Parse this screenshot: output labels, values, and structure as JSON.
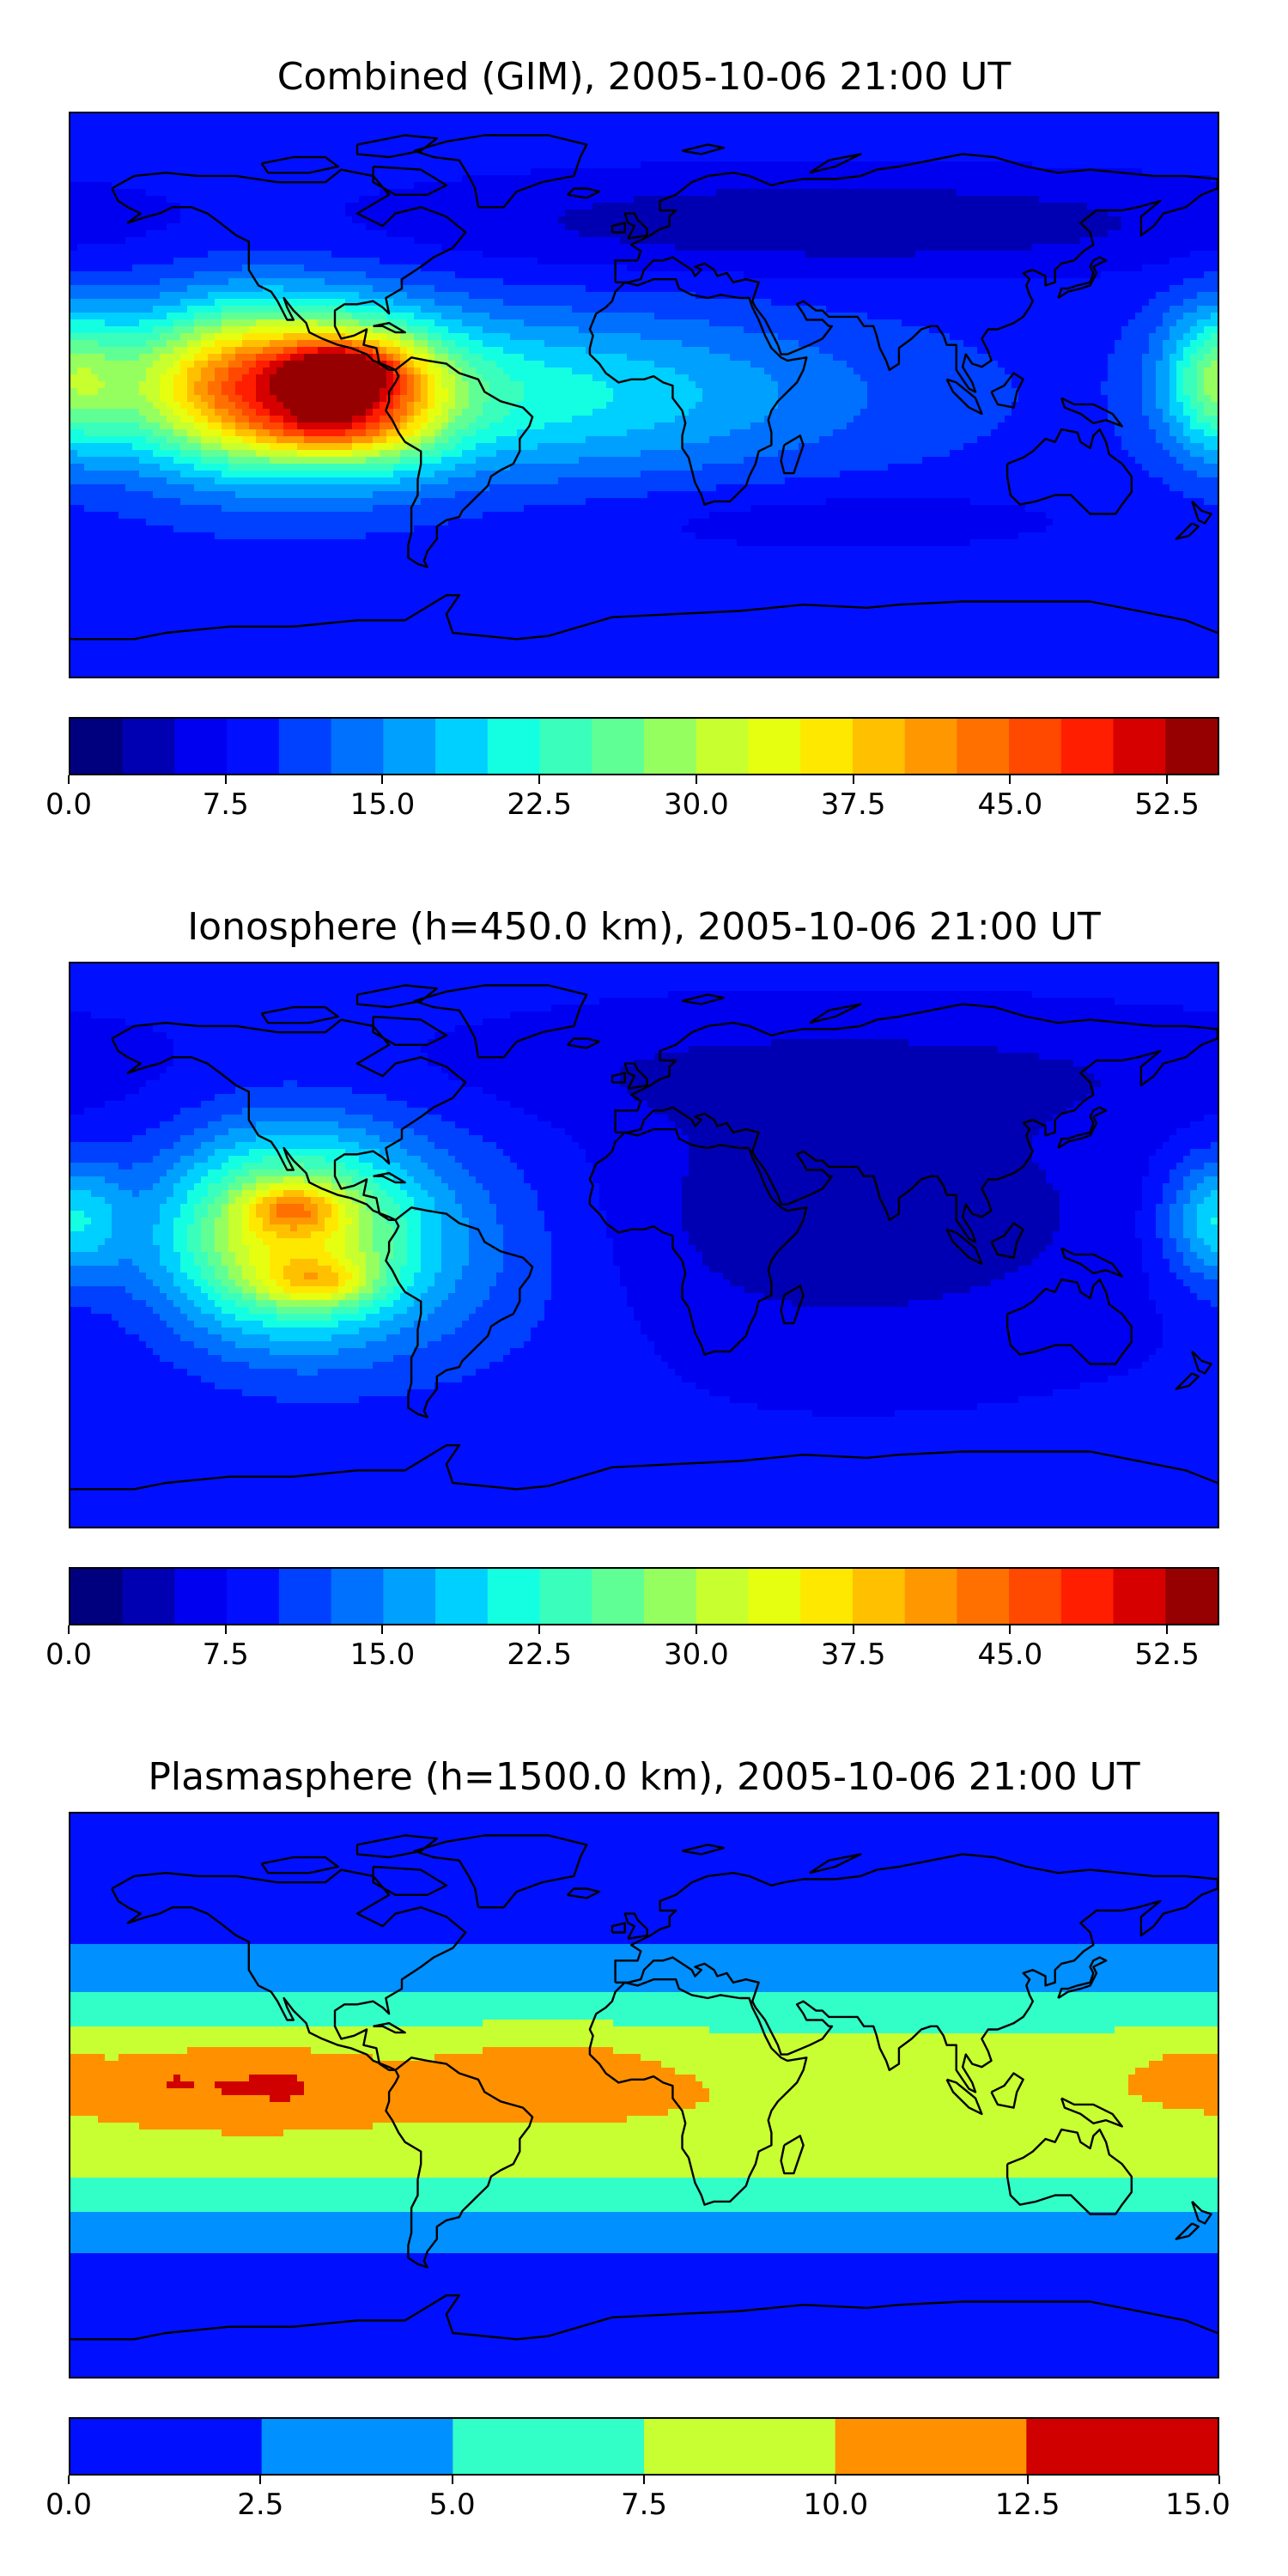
{
  "chart_data": [
    {
      "type": "heatmap",
      "title": "Combined (GIM), 2005-10-06 21:00 UT",
      "xlabel": "",
      "ylabel": "",
      "colorbar": {
        "min": 0.0,
        "max": 55.0,
        "step": 2.5,
        "ticks": [
          "0.0",
          "7.5",
          "15.0",
          "22.5",
          "30.0",
          "37.5",
          "45.0",
          "52.5"
        ],
        "tick_values": [
          0.0,
          7.5,
          15.0,
          22.5,
          30.0,
          37.5,
          45.0,
          52.5
        ],
        "colors": [
          "#00007f",
          "#0000b2",
          "#0000f1",
          "#0010ff",
          "#0040ff",
          "#0070ff",
          "#00a0ff",
          "#00d0ff",
          "#14ffe2",
          "#3affbc",
          "#60ff96",
          "#96ff60",
          "#c8ff2e",
          "#e6ff10",
          "#ffe800",
          "#ffc000",
          "#ff9800",
          "#ff7000",
          "#ff4800",
          "#ff1e00",
          "#d60000",
          "#960000"
        ]
      },
      "field": {
        "background": 9.0,
        "blobs": [
          {
            "lon": -118,
            "lat": 3,
            "sx": 32,
            "sy": 18,
            "amp": 34
          },
          {
            "lon": -95,
            "lat": 8,
            "sx": 12,
            "sy": 6,
            "amp": 18
          },
          {
            "lon": -100,
            "lat": -10,
            "sx": 14,
            "sy": 6,
            "amp": 10
          },
          {
            "lon": -80,
            "lat": -2,
            "sx": 14,
            "sy": 14,
            "amp": 10
          },
          {
            "lon": -40,
            "lat": 0,
            "sx": 70,
            "sy": 18,
            "amp": 12
          },
          {
            "lon": 180,
            "lat": 5,
            "sx": 12,
            "sy": 16,
            "amp": 14
          },
          {
            "lon": 60,
            "lat": 55,
            "sx": 100,
            "sy": 12,
            "amp": -6
          },
          {
            "lon": 60,
            "lat": -40,
            "sx": 60,
            "sy": 8,
            "amp": -3
          }
        ]
      }
    },
    {
      "type": "heatmap",
      "title": "Ionosphere  (h=450.0 km), 2005-10-06 21:00 UT",
      "xlabel": "",
      "ylabel": "",
      "colorbar": {
        "min": 0.0,
        "max": 55.0,
        "step": 2.5,
        "ticks": [
          "0.0",
          "7.5",
          "15.0",
          "22.5",
          "30.0",
          "37.5",
          "45.0",
          "52.5"
        ],
        "tick_values": [
          0.0,
          7.5,
          15.0,
          22.5,
          30.0,
          37.5,
          45.0,
          52.5
        ],
        "colors": [
          "#00007f",
          "#0000b2",
          "#0000f1",
          "#0010ff",
          "#0040ff",
          "#0070ff",
          "#00a0ff",
          "#00d0ff",
          "#14ffe2",
          "#3affbc",
          "#60ff96",
          "#96ff60",
          "#c8ff2e",
          "#e6ff10",
          "#ffe800",
          "#ffc000",
          "#ff9800",
          "#ff7000",
          "#ff4800",
          "#ff1e00",
          "#d60000",
          "#960000"
        ]
      },
      "field": {
        "background": 8.0,
        "blobs": [
          {
            "lon": -112,
            "lat": 3,
            "sx": 28,
            "sy": 22,
            "amp": 26
          },
          {
            "lon": -110,
            "lat": 12,
            "sx": 10,
            "sy": 5,
            "amp": 10
          },
          {
            "lon": -102,
            "lat": -12,
            "sx": 12,
            "sy": 5,
            "amp": 10
          },
          {
            "lon": -60,
            "lat": 0,
            "sx": 40,
            "sy": 30,
            "amp": 5
          },
          {
            "lon": 180,
            "lat": 8,
            "sx": 12,
            "sy": 14,
            "amp": 12
          },
          {
            "lon": 60,
            "lat": 10,
            "sx": 70,
            "sy": 30,
            "amp": -5
          },
          {
            "lon": 60,
            "lat": 55,
            "sx": 100,
            "sy": 12,
            "amp": -3
          }
        ]
      }
    },
    {
      "type": "heatmap",
      "title": "Plasmasphere (h=1500.0 km), 2005-10-06 21:00 UT",
      "xlabel": "",
      "ylabel": "",
      "colorbar": {
        "min": 0.0,
        "max": 15.0,
        "step": 2.5,
        "ticks": [
          "0.0",
          "2.5",
          "5.0",
          "7.5",
          "10.0",
          "12.5",
          "15.0"
        ],
        "tick_values": [
          0.0,
          2.5,
          5.0,
          7.5,
          10.0,
          12.5,
          15.0
        ],
        "colors": [
          "#0010ff",
          "#0090ff",
          "#32ffc8",
          "#c8ff32",
          "#ff9100",
          "#d00000"
        ]
      },
      "field": {
        "background": 1.0,
        "blobs": [
          {
            "lon": 0,
            "lat": 0,
            "sx": 900,
            "sy": 26,
            "amp": 8.8
          },
          {
            "lon": -125,
            "lat": 4,
            "sx": 32,
            "sy": 10,
            "amp": 3.0
          },
          {
            "lon": -30,
            "lat": 8,
            "sx": 24,
            "sy": 10,
            "amp": 2.4
          },
          {
            "lon": -148,
            "lat": 4,
            "sx": 4,
            "sy": 2.5,
            "amp": 0.9
          },
          {
            "lon": -112,
            "lat": 2,
            "sx": 4,
            "sy": 2.5,
            "amp": 0.9
          },
          {
            "lon": 170,
            "lat": 12,
            "sx": 14,
            "sy": 8,
            "amp": 1.2
          },
          {
            "lon": 0,
            "lat": -28,
            "sx": 900,
            "sy": 10,
            "amp": 1.4
          }
        ]
      }
    }
  ]
}
